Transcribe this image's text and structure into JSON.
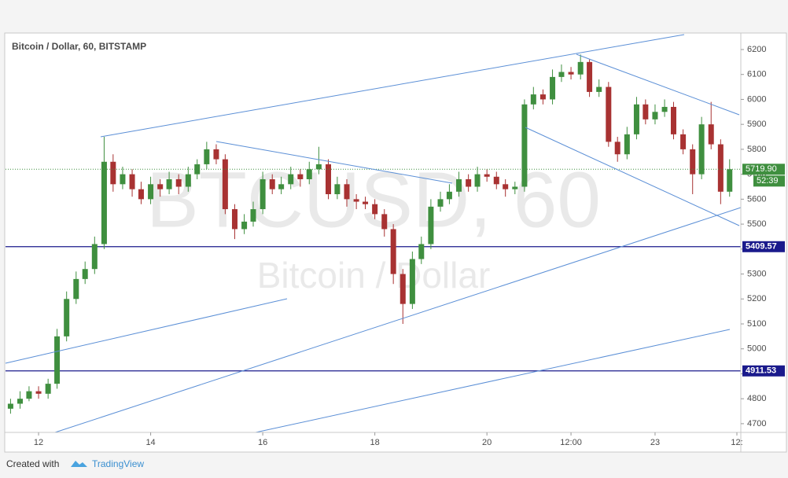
{
  "chart_data": {
    "type": "candlestick",
    "title": "Bitcoin / Dollar, 60, BITSTAMP",
    "watermark": "BTCUSD, 60",
    "watermark_subtitle": "Bitcoin / Dollar",
    "footer": {
      "prefix": "Created with",
      "brand": "TradingView"
    },
    "up_color": "#3f8f3f",
    "down_color": "#a83232",
    "line_color": "#5b8fd6",
    "xlim": [
      11.41,
      24.53
    ],
    "ylim": [
      4665,
      6263
    ],
    "xticks": [
      12,
      14,
      16,
      18,
      20,
      {
        "value": 21.5,
        "label": "12:00"
      },
      23,
      {
        "value": 24.46,
        "label": "12:"
      }
    ],
    "yticks": [
      4700,
      4800,
      4900,
      5000,
      5100,
      5200,
      5300,
      5400,
      5500,
      5600,
      5700,
      5800,
      5900,
      6000,
      6100,
      6200
    ],
    "hlines": [
      5409.57,
      4911.53
    ],
    "last_price": {
      "value": 5719.9,
      "label": "5719.90"
    },
    "countdown": "52:39",
    "x": [
      11.5,
      11.67,
      11.83,
      12,
      12.17,
      12.33,
      12.5,
      12.67,
      12.83,
      13,
      13.17,
      13.33,
      13.5,
      13.67,
      13.83,
      14,
      14.17,
      14.33,
      14.5,
      14.67,
      14.83,
      15,
      15.17,
      15.33,
      15.5,
      15.67,
      15.83,
      16,
      16.17,
      16.33,
      16.5,
      16.67,
      16.83,
      17,
      17.17,
      17.33,
      17.5,
      17.67,
      17.83,
      18,
      18.17,
      18.33,
      18.5,
      18.67,
      18.83,
      19,
      19.17,
      19.33,
      19.5,
      19.67,
      19.83,
      20,
      20.17,
      20.33,
      20.5,
      20.67,
      20.83,
      21,
      21.17,
      21.33,
      21.5,
      21.67,
      21.83,
      22,
      22.17,
      22.33,
      22.5,
      22.67,
      22.83,
      23,
      23.17,
      23.33,
      23.5,
      23.67,
      23.83,
      24,
      24.17,
      24.33
    ],
    "open": [
      4760,
      4780,
      4800,
      4830,
      4820,
      4860,
      5050,
      5200,
      5280,
      5320,
      5420,
      5750,
      5660,
      5700,
      5640,
      5600,
      5660,
      5640,
      5680,
      5650,
      5700,
      5740,
      5800,
      5760,
      5560,
      5480,
      5510,
      5560,
      5680,
      5640,
      5660,
      5700,
      5680,
      5720,
      5740,
      5620,
      5660,
      5600,
      5590,
      5580,
      5540,
      5480,
      5300,
      5180,
      5360,
      5420,
      5570,
      5600,
      5630,
      5680,
      5650,
      5700,
      5690,
      5660,
      5640,
      5650,
      5980,
      6020,
      6000,
      6090,
      6110,
      6100,
      6150,
      6030,
      6050,
      5830,
      5780,
      5860,
      5980,
      5920,
      5950,
      5970,
      5860,
      5800,
      5700,
      5900,
      5820,
      5630
    ],
    "high": [
      4800,
      4830,
      4850,
      4850,
      4880,
      5080,
      5230,
      5310,
      5350,
      5450,
      5850,
      5780,
      5730,
      5720,
      5670,
      5690,
      5680,
      5710,
      5700,
      5730,
      5760,
      5830,
      5820,
      5780,
      5580,
      5540,
      5590,
      5710,
      5700,
      5690,
      5730,
      5720,
      5750,
      5810,
      5760,
      5690,
      5680,
      5620,
      5610,
      5600,
      5560,
      5500,
      5320,
      5390,
      5450,
      5600,
      5630,
      5660,
      5710,
      5700,
      5730,
      5720,
      5710,
      5680,
      5670,
      6000,
      6050,
      6040,
      6120,
      6140,
      6130,
      6180,
      6160,
      6080,
      6070,
      5850,
      5890,
      6010,
      6000,
      5980,
      6000,
      5990,
      5880,
      5820,
      5930,
      5990,
      5840,
      5760
    ],
    "low": [
      4740,
      4760,
      4790,
      4800,
      4800,
      4840,
      5030,
      5180,
      5260,
      5300,
      5400,
      5630,
      5640,
      5610,
      5580,
      5580,
      5610,
      5620,
      5620,
      5630,
      5680,
      5720,
      5740,
      5540,
      5440,
      5460,
      5490,
      5540,
      5620,
      5620,
      5640,
      5650,
      5660,
      5700,
      5600,
      5600,
      5570,
      5560,
      5560,
      5520,
      5450,
      5260,
      5100,
      5160,
      5340,
      5400,
      5550,
      5580,
      5610,
      5630,
      5630,
      5670,
      5640,
      5610,
      5620,
      5630,
      5960,
      5980,
      5980,
      6070,
      6080,
      6080,
      6010,
      6010,
      5810,
      5750,
      5760,
      5840,
      5900,
      5900,
      5930,
      5840,
      5780,
      5620,
      5680,
      5800,
      5580,
      5610
    ],
    "close": [
      4780,
      4800,
      4830,
      4820,
      4860,
      5050,
      5200,
      5280,
      5320,
      5420,
      5750,
      5660,
      5700,
      5640,
      5600,
      5660,
      5640,
      5680,
      5650,
      5700,
      5740,
      5800,
      5760,
      5560,
      5480,
      5510,
      5560,
      5680,
      5640,
      5660,
      5700,
      5680,
      5720,
      5740,
      5620,
      5660,
      5600,
      5590,
      5580,
      5540,
      5480,
      5300,
      5180,
      5360,
      5420,
      5570,
      5600,
      5630,
      5680,
      5650,
      5700,
      5690,
      5660,
      5640,
      5650,
      5980,
      6020,
      6000,
      6090,
      6110,
      6100,
      6150,
      6030,
      6050,
      5830,
      5780,
      5860,
      5980,
      5920,
      5950,
      5970,
      5860,
      5800,
      5700,
      5900,
      5820,
      5630,
      5720
    ]
  }
}
